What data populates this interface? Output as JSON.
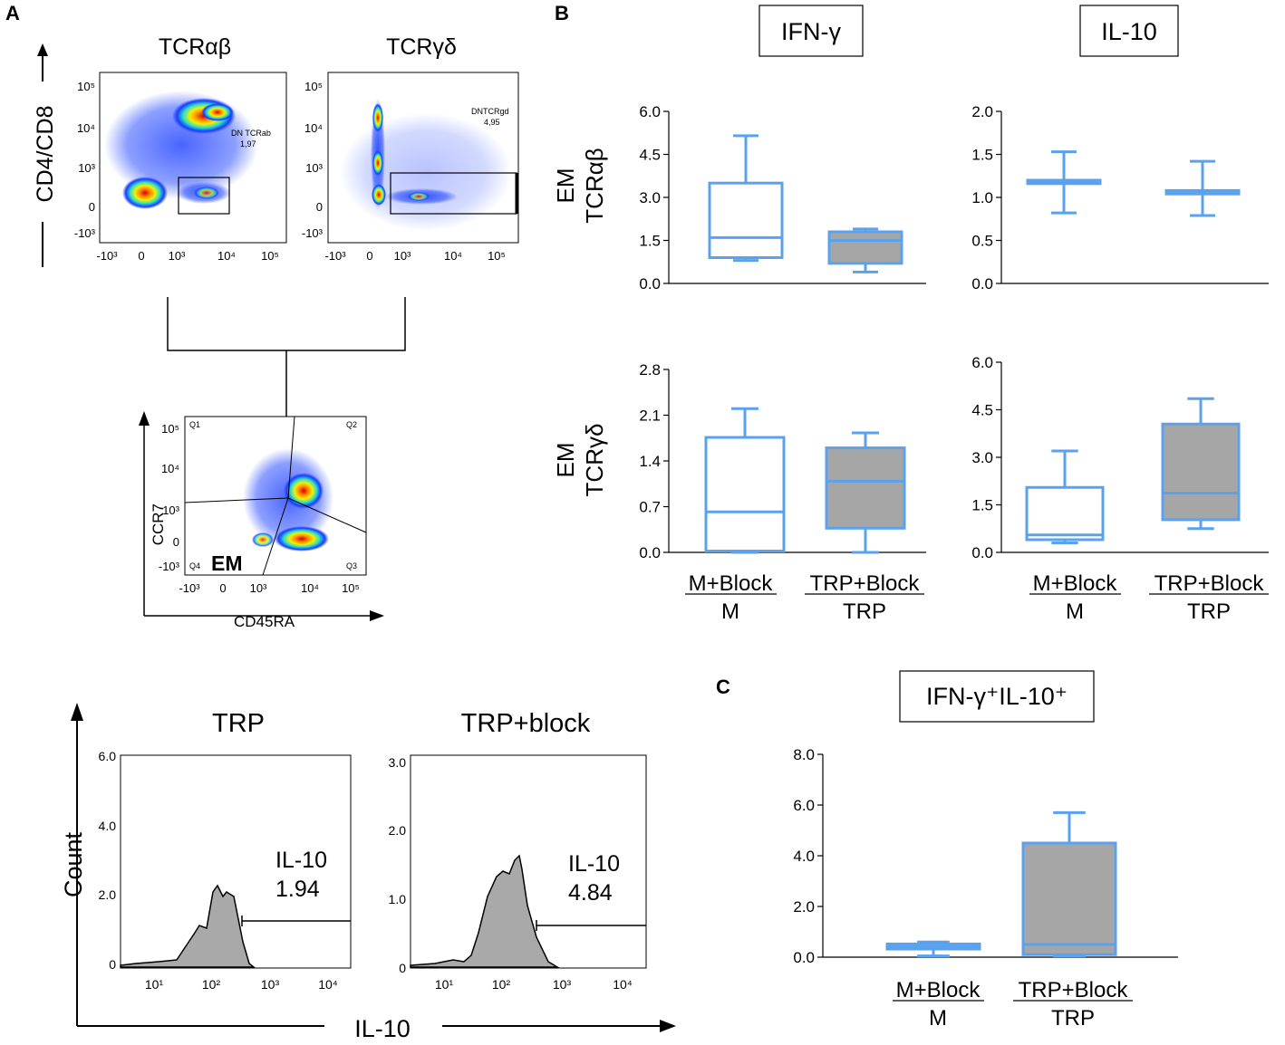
{
  "panels": {
    "a": "A",
    "b": "B",
    "c": "C"
  },
  "panel_a": {
    "flow_top": [
      {
        "title": "TCRαβ",
        "gate_name": "DN TCRab",
        "gate_value": "1,97"
      },
      {
        "title": "TCRγδ",
        "gate_name": "DNTCRgd",
        "gate_value": "4,95"
      }
    ],
    "y_axis_label": "CD4/CD8",
    "log_ticks": {
      "y": [
        "10⁵",
        "10⁴",
        "10³",
        "0",
        "-10³"
      ],
      "x": [
        "-10³",
        "0",
        "10³",
        "10⁴",
        "10⁵"
      ]
    },
    "em_plot": {
      "x_label": "CD45RA",
      "y_label": "CCR7",
      "quadrants": [
        "Q1",
        "Q2",
        "Q3",
        "Q4"
      ],
      "gate_label": "EM"
    },
    "histograms": [
      {
        "title": "TRP",
        "y_ticks": [
          "6.0",
          "4.0",
          "2.0",
          "0"
        ],
        "gate_name": "IL-10",
        "gate_value": "1.94"
      },
      {
        "title": "TRP+block",
        "y_ticks": [
          "3.0",
          "2.0",
          "1.0",
          "0"
        ],
        "gate_name": "IL-10",
        "gate_value": "4.84"
      }
    ],
    "hist_x_ticks": [
      "10¹",
      "10²",
      "10³",
      "10⁴"
    ],
    "hist_y_label": "Count",
    "hist_x_label": "IL-10"
  },
  "group_labels": [
    {
      "top": "M+Block",
      "bottom": "M"
    },
    {
      "top": "TRP+Block",
      "bottom": "TRP"
    }
  ],
  "row_labels": [
    {
      "line1": "EM",
      "line2": "TCRαβ"
    },
    {
      "line1": "EM",
      "line2": "TCRγδ"
    }
  ],
  "colors": {
    "box_stroke": "#5aa2ee",
    "box_fill_trp": "#a6a6a6",
    "hist_fill": "#a9a9a9"
  },
  "chart_data": [
    {
      "type": "box",
      "title": "IFN-γ",
      "ylabel": "EM TCRαβ",
      "yticks": [
        "6.0",
        "4.5",
        "3.0",
        "1.5",
        "0.0"
      ],
      "ylim": [
        0,
        6
      ],
      "categories": [
        "M+Block / M",
        "TRP+Block / TRP"
      ],
      "series": [
        {
          "name": "M+Block / M",
          "min": 0.8,
          "q1": 0.9,
          "median": 1.6,
          "q3": 3.5,
          "max": 5.15
        },
        {
          "name": "TRP+Block / TRP",
          "min": 0.4,
          "q1": 0.7,
          "median": 1.5,
          "q3": 1.8,
          "max": 1.9
        }
      ]
    },
    {
      "type": "box",
      "title": "IL-10",
      "ylabel": "EM TCRαβ",
      "yticks": [
        "2.0",
        "1.5",
        "1.0",
        "0.5",
        "0.0"
      ],
      "ylim": [
        0,
        2
      ],
      "categories": [
        "M+Block / M",
        "TRP+Block / TRP"
      ],
      "series": [
        {
          "name": "M+Block / M",
          "min": 0.82,
          "q1": 1.16,
          "median": 1.18,
          "q3": 1.2,
          "max": 1.53
        },
        {
          "name": "TRP+Block / TRP",
          "min": 0.79,
          "q1": 1.04,
          "median": 1.06,
          "q3": 1.08,
          "max": 1.42
        }
      ]
    },
    {
      "type": "box",
      "title": "IFN-γ",
      "ylabel": "EM TCRγδ",
      "yticks": [
        "2.8",
        "2.1",
        "1.4",
        "0.7",
        "0.0"
      ],
      "ylim": [
        0,
        2.8
      ],
      "categories": [
        "M+Block / M",
        "TRP+Block / TRP"
      ],
      "series": [
        {
          "name": "M+Block / M",
          "min": 0.0,
          "q1": 0.02,
          "median": 0.62,
          "q3": 1.76,
          "max": 2.2
        },
        {
          "name": "TRP+Block / TRP",
          "min": 0.0,
          "q1": 0.37,
          "median": 1.09,
          "q3": 1.6,
          "max": 1.83
        }
      ]
    },
    {
      "type": "box",
      "title": "IL-10",
      "ylabel": "EM TCRγδ",
      "yticks": [
        "6.0",
        "4.5",
        "3.0",
        "1.5",
        "0.0"
      ],
      "ylim": [
        0,
        6
      ],
      "categories": [
        "M+Block / M",
        "TRP+Block / TRP"
      ],
      "series": [
        {
          "name": "M+Block / M",
          "min": 0.3,
          "q1": 0.4,
          "median": 0.55,
          "q3": 2.05,
          "max": 3.2
        },
        {
          "name": "TRP+Block / TRP",
          "min": 0.75,
          "q1": 1.03,
          "median": 1.87,
          "q3": 4.05,
          "max": 4.85
        }
      ]
    },
    {
      "type": "box",
      "title": "IFN-γ⁺IL-10⁺",
      "ylabel": "",
      "yticks": [
        "8.0",
        "6.0",
        "4.0",
        "2.0",
        "0.0"
      ],
      "ylim": [
        0,
        8
      ],
      "categories": [
        "M+Block / M",
        "TRP+Block / TRP"
      ],
      "series": [
        {
          "name": "M+Block / M",
          "min": 0.05,
          "q1": 0.32,
          "median": 0.42,
          "q3": 0.52,
          "max": 0.6
        },
        {
          "name": "TRP+Block / TRP",
          "min": 0.05,
          "q1": 0.1,
          "median": 0.5,
          "q3": 4.5,
          "max": 5.7
        }
      ]
    }
  ]
}
